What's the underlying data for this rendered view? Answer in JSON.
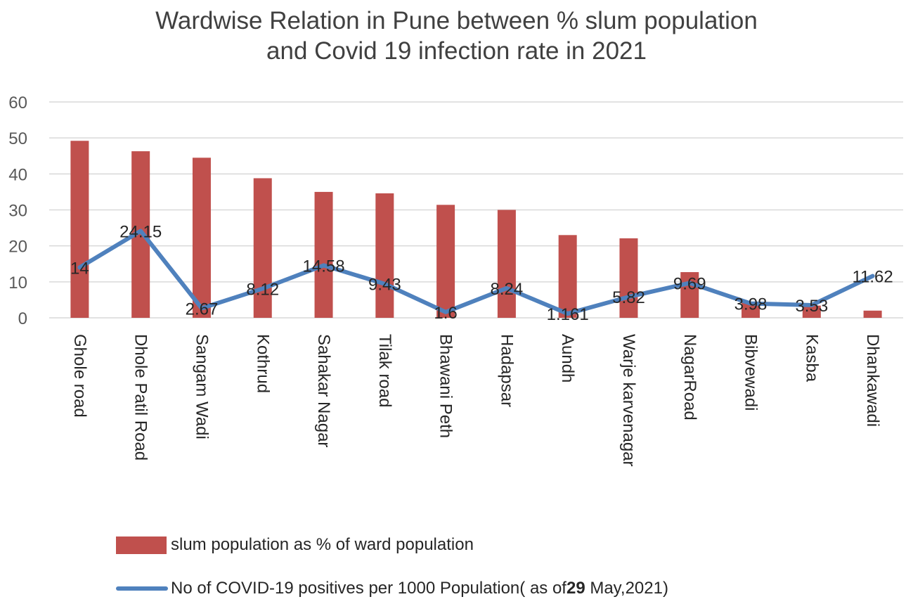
{
  "chart_data": {
    "type": "bar",
    "title_lines": [
      "Wardwise Relation in Pune between % slum population",
      "and Covid 19 infection rate in 2021"
    ],
    "categories": [
      "Ghole road",
      "Dhole Patil Road",
      "Sangam Wadi",
      "Kothrud",
      "Sahakar Nagar",
      "Tilak road",
      "Bhawani Peth",
      "Hadapsar",
      "Aundh",
      "Warje karvenagar",
      "NagarRoad",
      "Bibvewadi",
      "Kasba",
      "Dhankawadi"
    ],
    "ylim": [
      0,
      60
    ],
    "yticks": [
      "0",
      "10",
      "20",
      "30",
      "40",
      "50",
      "60"
    ],
    "grid": true,
    "legend_position": "bottom",
    "series": [
      {
        "name": "slum population as % of ward population",
        "type": "bar",
        "color": "#c0504d",
        "values": [
          49.2,
          46.3,
          44.5,
          38.8,
          35.0,
          34.6,
          31.4,
          30.0,
          23.0,
          22.1,
          12.7,
          4.2,
          3.4,
          2.0
        ]
      },
      {
        "name": "No of COVID-19 positives per 1000 Population( as of 29 May,2021)",
        "name_parts": [
          "No of COVID-19 positives per 1000 Population( as of",
          "29",
          " May,2021)"
        ],
        "type": "line",
        "color": "#4f81bd",
        "values": [
          14,
          24.15,
          2.67,
          8.12,
          14.58,
          9.43,
          1.6,
          8.24,
          1.161,
          5.82,
          9.69,
          3.98,
          3.53,
          11.62
        ],
        "labels": [
          "14",
          "24.15",
          "2.67",
          "8.12",
          "14.58",
          "9.43",
          "1.6",
          "8.24",
          "1.161",
          "5.82",
          "9.69",
          "3.98",
          "3.53",
          "11.62"
        ]
      }
    ]
  }
}
